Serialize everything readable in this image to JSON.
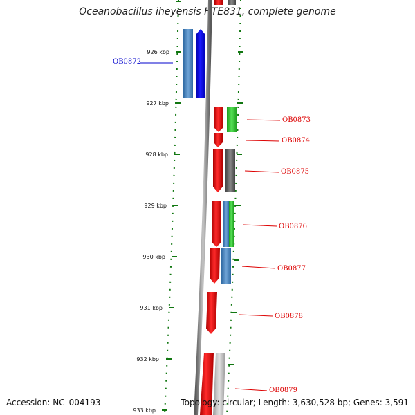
{
  "title": "Oceanobacillus iheyensis HTE831, complete genome",
  "accession_label": "Accession: NC_004193",
  "topology_label": "Topology: circular; Length: 3,630,528 bp; Genes: 3,591",
  "ticks": [
    "926 kbp",
    "927 kbp",
    "928 kbp",
    "929 kbp",
    "930 kbp",
    "931 kbp",
    "932 kbp",
    "933 kbp"
  ],
  "genes": [
    {
      "label": "OB0872",
      "side": "left",
      "color": "#0000cc"
    },
    {
      "label": "OB0873",
      "side": "right",
      "color": "#dd0000"
    },
    {
      "label": "OB0874",
      "side": "right",
      "color": "#dd0000"
    },
    {
      "label": "OB0875",
      "side": "right",
      "color": "#dd0000"
    },
    {
      "label": "OB0876",
      "side": "right",
      "color": "#dd0000"
    },
    {
      "label": "OB0877",
      "side": "right",
      "color": "#dd0000"
    },
    {
      "label": "OB0878",
      "side": "right",
      "color": "#dd0000"
    },
    {
      "label": "OB0879",
      "side": "right",
      "color": "#dd0000"
    }
  ],
  "colors": {
    "forward_strand": "#ee0000",
    "reverse_strand": "#0000ee",
    "cog_blue": "#4a86c0",
    "cog_green": "#33cc33",
    "cog_gray": "#606060",
    "cog_light": "#b8b8b8",
    "tick_green": "#117711",
    "backbone": "#808080"
  }
}
